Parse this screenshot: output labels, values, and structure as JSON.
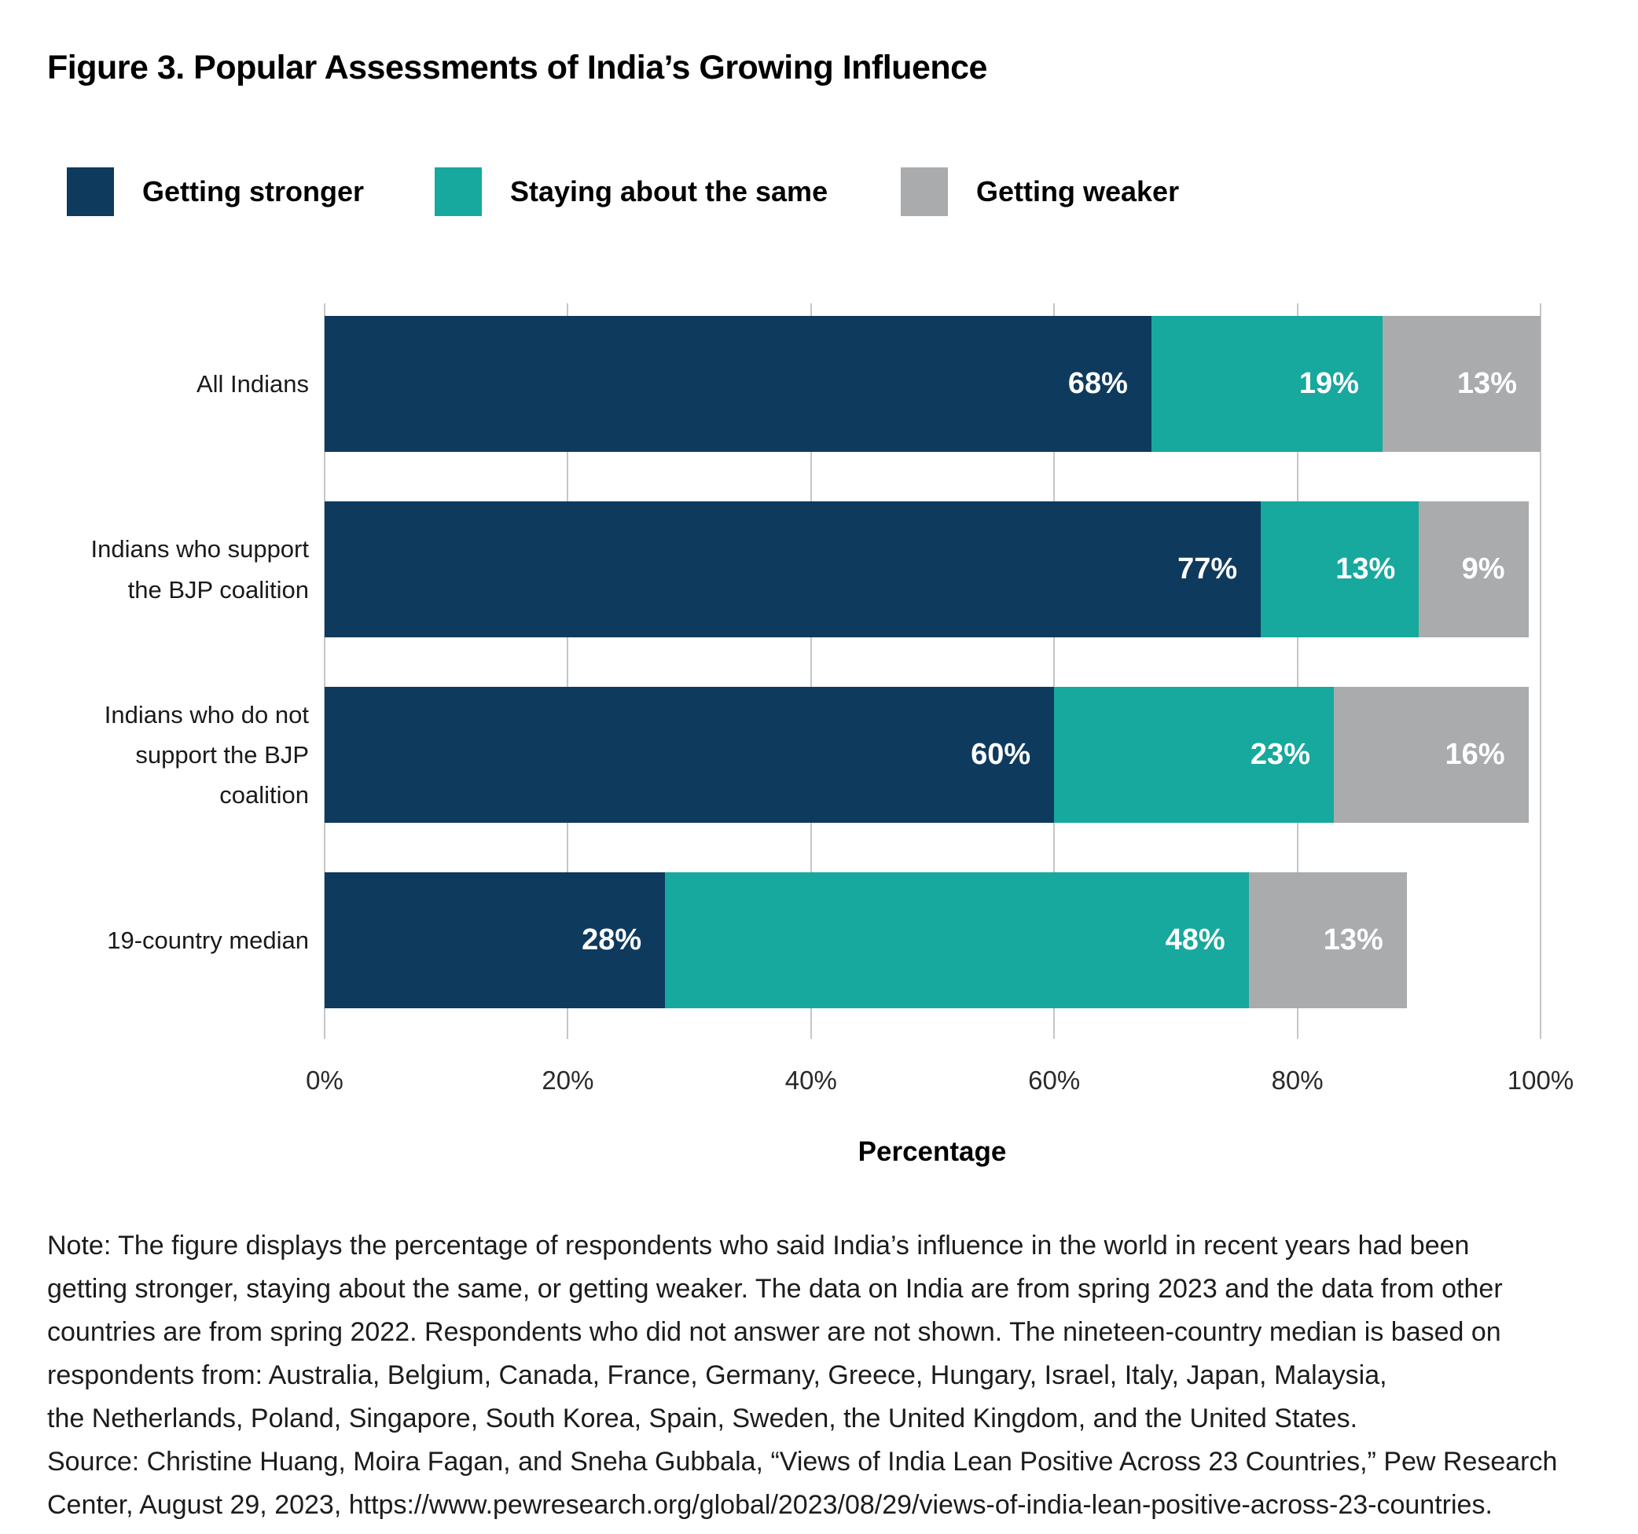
{
  "figure_title": "Figure 3. Popular Assessments of India’s Growing Influence",
  "legend": {
    "items": [
      {
        "label": "Getting stronger",
        "color": "#0e3a5e"
      },
      {
        "label": "Staying about the same",
        "color": "#17a89e"
      },
      {
        "label": "Getting weaker",
        "color": "#a9abad"
      }
    ]
  },
  "chart_data": {
    "type": "bar",
    "orientation": "horizontal",
    "stacked": true,
    "title": "Figure 3. Popular Assessments of India’s Growing Influence",
    "categories": [
      "All Indians",
      "Indians who support\nthe BJP coalition",
      "Indians who do not\nsupport the BJP coalition",
      "19-country median"
    ],
    "series": [
      {
        "name": "Getting stronger",
        "color": "#0e3a5e",
        "values": [
          68,
          77,
          60,
          28
        ]
      },
      {
        "name": "Staying about the same",
        "color": "#17a89e",
        "values": [
          19,
          13,
          23,
          48
        ]
      },
      {
        "name": "Getting weaker",
        "color": "#a9abad",
        "values": [
          13,
          9,
          16,
          13
        ]
      }
    ],
    "value_labels": [
      [
        "68%",
        "19%",
        "13%"
      ],
      [
        "77%",
        "13%",
        "9%"
      ],
      [
        "60%",
        "23%",
        "16%"
      ],
      [
        "28%",
        "48%",
        "13%"
      ]
    ],
    "xlabel": "Percentage",
    "x_ticks": [
      "0%",
      "20%",
      "40%",
      "60%",
      "80%",
      "100%"
    ],
    "xlim": [
      0,
      100
    ],
    "grid": true,
    "gridline_color": "#c4c6c8",
    "value_label_color": "#ffffff",
    "legend_position": "top"
  },
  "note": "Note: The figure displays the percentage of respondents who said India’s influence in the world in recent years had been\ngetting stronger, staying about the same, or getting weaker. The data on India are from spring 2023 and the data from other\ncountries are from spring 2022. Respondents who did not answer are not shown. The nineteen-country median is based on\nrespondents from: Australia, Belgium, Canada, France, Germany, Greece, Hungary, Israel, Italy, Japan, Malaysia,\nthe Netherlands, Poland, Singapore, South Korea, Spain, Sweden, the United Kingdom, and the United States.\nSource: Christine Huang, Moira Fagan, and Sneha Gubbala, “Views of India Lean Positive Across 23 Countries,” Pew Research\nCenter, August 29, 2023, https://www.pewresearch.org/global/2023/08/29/views-of-india-lean-positive-across-23-countries."
}
